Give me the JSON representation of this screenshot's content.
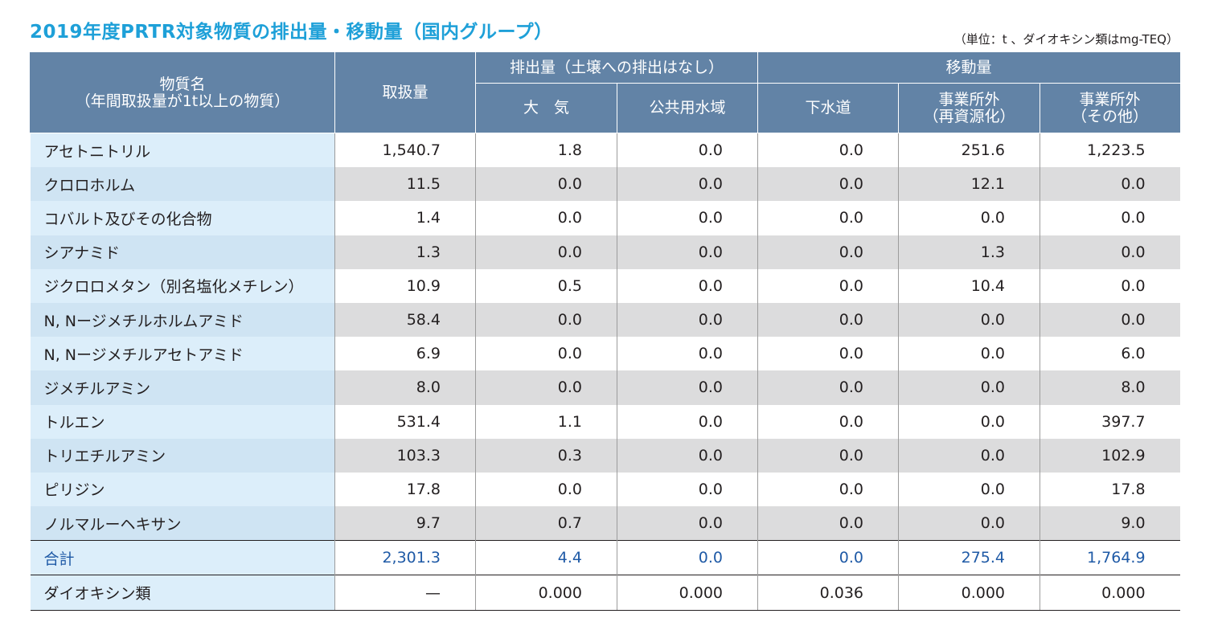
{
  "title": "2019年度PRTR対象物質の排出量・移動量（国内グループ）",
  "unit_note": "（単位：t 、ダイオキシン類はmg-TEQ）",
  "headers": {
    "substance_line1": "物質名",
    "substance_line2": "（年間取扱量が1t以上の物質）",
    "handled": "取扱量",
    "emission_group": "排出量（土壌への排出はなし）",
    "transfer_group": "移動量",
    "air": "大　気",
    "public_water": "公共用水域",
    "sewer": "下水道",
    "offsite_recycle_line1": "事業所外",
    "offsite_recycle_line2": "（再資源化）",
    "offsite_other_line1": "事業所外",
    "offsite_other_line2": "（その他）"
  },
  "rows": [
    {
      "name": "アセトニトリル",
      "handled": "1,540.7",
      "air": "1.8",
      "water": "0.0",
      "sewer": "0.0",
      "recycle": "251.6",
      "other": "1,223.5"
    },
    {
      "name": "クロロホルム",
      "handled": "11.5",
      "air": "0.0",
      "water": "0.0",
      "sewer": "0.0",
      "recycle": "12.1",
      "other": "0.0"
    },
    {
      "name": "コバルト及びその化合物",
      "handled": "1.4",
      "air": "0.0",
      "water": "0.0",
      "sewer": "0.0",
      "recycle": "0.0",
      "other": "0.0"
    },
    {
      "name": "シアナミド",
      "handled": "1.3",
      "air": "0.0",
      "water": "0.0",
      "sewer": "0.0",
      "recycle": "1.3",
      "other": "0.0"
    },
    {
      "name": "ジクロロメタン（別名塩化メチレン）",
      "handled": "10.9",
      "air": "0.5",
      "water": "0.0",
      "sewer": "0.0",
      "recycle": "10.4",
      "other": "0.0"
    },
    {
      "name": "N, Nージメチルホルムアミド",
      "handled": "58.4",
      "air": "0.0",
      "water": "0.0",
      "sewer": "0.0",
      "recycle": "0.0",
      "other": "0.0"
    },
    {
      "name": "N, Nージメチルアセトアミド",
      "handled": "6.9",
      "air": "0.0",
      "water": "0.0",
      "sewer": "0.0",
      "recycle": "0.0",
      "other": "6.0"
    },
    {
      "name": "ジメチルアミン",
      "handled": "8.0",
      "air": "0.0",
      "water": "0.0",
      "sewer": "0.0",
      "recycle": "0.0",
      "other": "8.0"
    },
    {
      "name": "トルエン",
      "handled": "531.4",
      "air": "1.1",
      "water": "0.0",
      "sewer": "0.0",
      "recycle": "0.0",
      "other": "397.7"
    },
    {
      "name": "トリエチルアミン",
      "handled": "103.3",
      "air": "0.3",
      "water": "0.0",
      "sewer": "0.0",
      "recycle": "0.0",
      "other": "102.9"
    },
    {
      "name": "ピリジン",
      "handled": "17.8",
      "air": "0.0",
      "water": "0.0",
      "sewer": "0.0",
      "recycle": "0.0",
      "other": "17.8"
    },
    {
      "name": "ノルマルーヘキサン",
      "handled": "9.7",
      "air": "0.7",
      "water": "0.0",
      "sewer": "0.0",
      "recycle": "0.0",
      "other": "9.0"
    }
  ],
  "total": {
    "name": "合計",
    "handled": "2,301.3",
    "air": "4.4",
    "water": "0.0",
    "sewer": "0.0",
    "recycle": "275.4",
    "other": "1,764.9"
  },
  "dioxin": {
    "name": "ダイオキシン類",
    "handled": "—",
    "air": "0.000",
    "water": "0.000",
    "sewer": "0.036",
    "recycle": "0.000",
    "other": "0.000"
  },
  "colors": {
    "title": "#1ea0d8",
    "header_bg": "#6283a6",
    "total_text": "#1f5aa6",
    "name_col_bg": "#dceefa",
    "stripe_bg": "#dcdcdd"
  }
}
